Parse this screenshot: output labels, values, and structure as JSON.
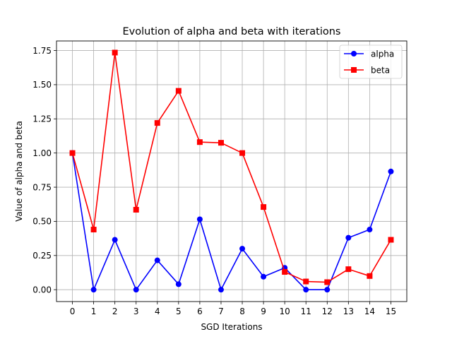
{
  "chart_data": {
    "type": "line",
    "title": "Evolution of alpha and beta with iterations",
    "xlabel": "SGD Iterations",
    "ylabel": "Value of alpha and beta",
    "x": [
      0,
      1,
      2,
      3,
      4,
      5,
      6,
      7,
      8,
      9,
      10,
      11,
      12,
      13,
      14,
      15
    ],
    "xlim": [
      -0.75,
      15.75
    ],
    "ylim": [
      -0.087,
      1.82
    ],
    "xticks": [
      0,
      1,
      2,
      3,
      4,
      5,
      6,
      7,
      8,
      9,
      10,
      11,
      12,
      13,
      14,
      15
    ],
    "yticks": [
      0.0,
      0.25,
      0.5,
      0.75,
      1.0,
      1.25,
      1.5,
      1.75
    ],
    "ytick_labels": [
      "0.00",
      "0.25",
      "0.50",
      "0.75",
      "1.00",
      "1.25",
      "1.50",
      "1.75"
    ],
    "grid": true,
    "legend": "top-right",
    "series": [
      {
        "name": "alpha",
        "color": "#0000ff",
        "marker": "circle",
        "values": [
          1.0,
          0.0,
          0.365,
          0.0,
          0.215,
          0.04,
          0.515,
          0.0,
          0.3,
          0.095,
          0.16,
          0.0,
          0.0,
          0.38,
          0.44,
          0.865
        ]
      },
      {
        "name": "beta",
        "color": "#ff0000",
        "marker": "square",
        "values": [
          1.0,
          0.44,
          1.735,
          0.585,
          1.22,
          1.455,
          1.08,
          1.075,
          1.0,
          0.605,
          0.13,
          0.06,
          0.055,
          0.15,
          0.1,
          0.365
        ]
      }
    ]
  }
}
